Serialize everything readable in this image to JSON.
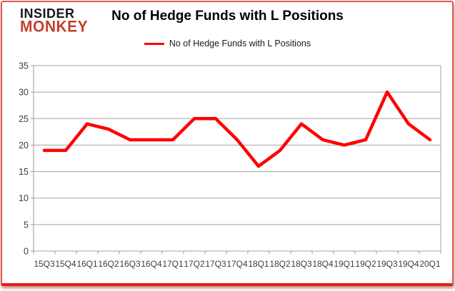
{
  "brand": {
    "line1": "INSIDER",
    "line2": "MONKEY",
    "line1_color": "#161616",
    "line2_color": "#c5402e"
  },
  "title": "No of Hedge Funds with L Positions",
  "legend": {
    "label": "No of Hedge Funds with L Positions",
    "line_color": "#ff0000"
  },
  "chart_data": {
    "type": "line",
    "title": "No of Hedge Funds with L Positions",
    "categories": [
      "15Q3",
      "15Q4",
      "16Q1",
      "16Q2",
      "16Q3",
      "16Q4",
      "17Q1",
      "17Q2",
      "17Q3",
      "17Q4",
      "18Q1",
      "18Q2",
      "18Q3",
      "18Q4",
      "19Q1",
      "19Q2",
      "19Q3",
      "19Q4",
      "20Q1"
    ],
    "series": [
      {
        "name": "No of Hedge Funds with L Positions",
        "color": "#ff0000",
        "values": [
          19,
          19,
          24,
          23,
          21,
          21,
          21,
          25,
          25,
          21,
          16,
          19,
          24,
          21,
          20,
          21,
          30,
          24,
          21
        ]
      }
    ],
    "xlabel": "",
    "ylabel": "",
    "ylim": [
      0,
      35
    ],
    "y_ticks": [
      0,
      5,
      10,
      15,
      20,
      25,
      30,
      35
    ],
    "grid": true,
    "legend_position": "top"
  },
  "colors": {
    "grid": "#a3a3a3",
    "axis": "#9a9a9a",
    "tick_label": "#3d3d3d",
    "frame_border": "#e25a4d",
    "frame_border_bottom": "#ee1b10"
  }
}
